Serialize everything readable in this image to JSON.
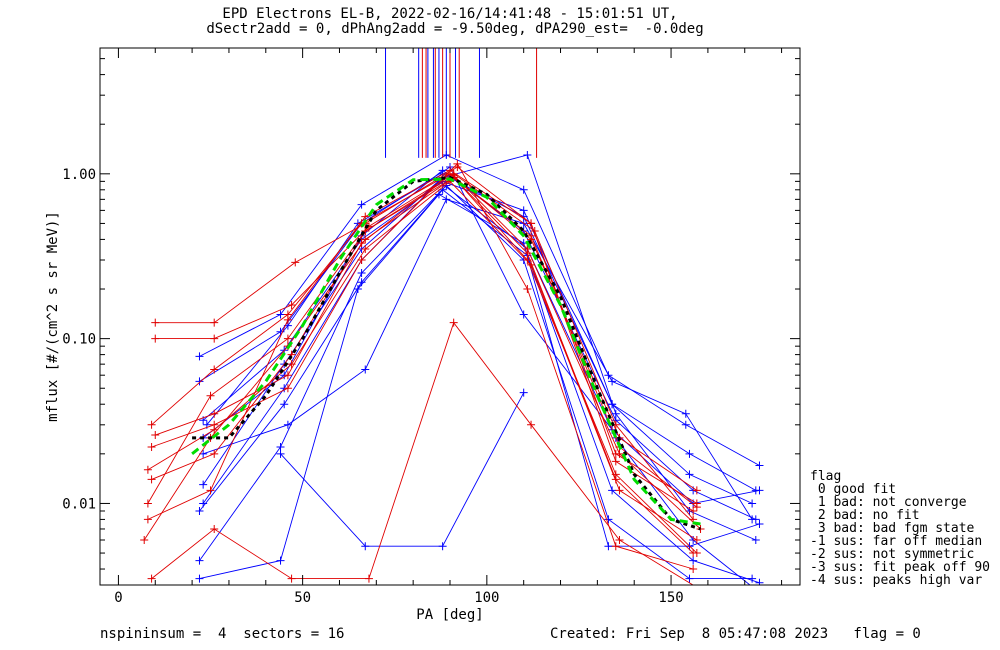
{
  "title_line1": "EPD Electrons EL-B, 2022-02-16/14:41:48 - 15:01:51 UT,",
  "title_line2": "dSectr2add = 0, dPhAng2add = -9.50deg, dPA290_est=  -0.0deg",
  "footer_left": "nspininsum =  4  sectors = 16",
  "footer_right": "Created: Fri Sep  8 05:47:08 2023   flag = 0",
  "legend": {
    "title": "flag",
    "items": [
      " 0 good fit",
      " 1 bad: not converge",
      " 2 bad: no fit",
      " 3 bad: bad fgm state",
      "-1 sus: far off median",
      "-2 sus: not symmetric",
      "-3 sus: fit peak off 90",
      "-4 sus: peaks high var"
    ]
  },
  "colors": {
    "blue": "#0000ff",
    "red": "#e00000",
    "fit_black": "#000000",
    "fit_green": "#00dd00"
  },
  "chart_data": {
    "type": "line",
    "xlabel": "PA [deg]",
    "ylabel": "mflux [#/(cm^2 s sr MeV)]",
    "xlim": [
      -5,
      185
    ],
    "ylim": [
      0.0032,
      5.8
    ],
    "yscale": "log",
    "x_ticks": [
      0,
      50,
      100,
      150
    ],
    "x_ticklabels": [
      "0",
      "50",
      "100",
      "150"
    ],
    "y_ticks": [
      0.01,
      0.1,
      1.0
    ],
    "y_ticklabels": [
      "0.01",
      "0.10",
      "1.00"
    ],
    "grid": false,
    "series": [
      {
        "color": "blue",
        "x": [
          24,
          46,
          65,
          88,
          110,
          134,
          155,
          172
        ],
        "y": [
          0.03,
          0.12,
          0.5,
          1.0,
          0.55,
          0.04,
          0.015,
          0.01
        ]
      },
      {
        "color": "blue",
        "x": [
          23,
          45,
          66,
          87,
          111,
          135,
          156,
          173
        ],
        "y": [
          0.01,
          0.05,
          0.3,
          0.9,
          0.35,
          0.025,
          0.006,
          0.003
        ]
      },
      {
        "color": "blue",
        "x": [
          22,
          44,
          66,
          89,
          110,
          133,
          154,
          174
        ],
        "y": [
          0.078,
          0.14,
          0.65,
          1.3,
          0.8,
          0.06,
          0.03,
          0.017
        ]
      },
      {
        "color": "blue",
        "x": [
          22,
          44,
          66,
          90,
          110,
          134,
          156,
          174
        ],
        "y": [
          0.055,
          0.11,
          0.5,
          1.1,
          0.14,
          0.028,
          0.01,
          0.012
        ]
      },
      {
        "color": "blue",
        "x": [
          23,
          45,
          66,
          88,
          111,
          135,
          155,
          173
        ],
        "y": [
          0.013,
          0.07,
          0.35,
          0.95,
          1.3,
          0.035,
          0.009,
          0.006
        ]
      },
      {
        "color": "blue",
        "x": [
          22,
          45,
          66,
          88,
          111,
          134,
          156,
          174
        ],
        "y": [
          0.009,
          0.04,
          0.22,
          0.8,
          0.32,
          0.012,
          0.0045,
          0.0033
        ]
      },
      {
        "color": "blue",
        "x": [
          22,
          44,
          66,
          89,
          110,
          133,
          155,
          172
        ],
        "y": [
          0.0045,
          0.022,
          0.25,
          0.85,
          0.3,
          0.008,
          0.0035,
          0.0035
        ]
      },
      {
        "color": "blue",
        "x": [
          23,
          45,
          66,
          88,
          110,
          134,
          155,
          173
        ],
        "y": [
          0.032,
          0.085,
          0.4,
          0.9,
          0.6,
          0.04,
          0.02,
          0.012
        ]
      },
      {
        "color": "blue",
        "x": [
          23,
          46,
          67,
          89,
          110,
          134,
          154,
          172
        ],
        "y": [
          0.02,
          0.03,
          0.065,
          0.7,
          0.5,
          0.055,
          0.035,
          0.008
        ]
      },
      {
        "color": "blue",
        "x": [
          22,
          44,
          65,
          87,
          110,
          133,
          155,
          174
        ],
        "y": [
          0.0035,
          0.0045,
          0.2,
          0.75,
          0.38,
          0.0055,
          0.0055,
          0.0075
        ]
      },
      {
        "color": "blue",
        "x": [
          23,
          45,
          66,
          88,
          110,
          135,
          156,
          173
        ],
        "y": [
          0.025,
          0.06,
          0.42,
          1.05,
          0.45,
          0.032,
          0.012,
          0.008
        ]
      },
      {
        "color": "blue",
        "x": [
          44,
          67,
          88,
          110
        ],
        "y": [
          0.02,
          0.0055,
          0.0055,
          0.047
        ]
      },
      {
        "color": "red",
        "x": [
          10,
          26,
          48,
          67,
          92,
          112,
          135,
          157
        ],
        "y": [
          0.125,
          0.125,
          0.29,
          0.5,
          1.1,
          0.5,
          0.02,
          0.01
        ]
      },
      {
        "color": "red",
        "x": [
          10,
          26,
          47,
          68,
          91,
          113,
          135,
          156
        ],
        "y": [
          0.1,
          0.1,
          0.16,
          0.48,
          1.0,
          0.45,
          0.03,
          0.008
        ]
      },
      {
        "color": "red",
        "x": [
          9,
          26,
          46,
          66,
          90,
          112,
          136,
          157
        ],
        "y": [
          0.03,
          0.065,
          0.14,
          0.5,
          1.0,
          0.4,
          0.025,
          0.012
        ]
      },
      {
        "color": "red",
        "x": [
          8,
          25,
          46,
          67,
          91,
          111,
          136,
          158
        ],
        "y": [
          0.01,
          0.045,
          0.1,
          0.45,
          0.98,
          0.35,
          0.02,
          0.007
        ]
      },
      {
        "color": "red",
        "x": [
          7,
          25,
          46,
          67,
          91,
          111,
          135,
          157
        ],
        "y": [
          0.006,
          0.025,
          0.09,
          0.4,
          0.95,
          0.3,
          0.015,
          0.005
        ]
      },
      {
        "color": "red",
        "x": [
          8,
          26,
          47,
          67,
          90,
          112,
          136,
          157
        ],
        "y": [
          0.016,
          0.028,
          0.07,
          0.35,
          0.9,
          0.28,
          0.012,
          0.006
        ]
      },
      {
        "color": "red",
        "x": [
          9,
          26,
          46,
          66,
          92,
          111,
          135,
          156
        ],
        "y": [
          0.022,
          0.03,
          0.05,
          0.3,
          1.15,
          0.2,
          0.0055,
          0.004
        ]
      },
      {
        "color": "red",
        "x": [
          9,
          26,
          47,
          68,
          91,
          112,
          136,
          158
        ],
        "y": [
          0.0035,
          0.007,
          0.0035,
          0.0035,
          0.125,
          0.03,
          0.006,
          0.003
        ]
      },
      {
        "color": "red",
        "x": [
          8,
          25,
          46,
          67,
          90,
          112,
          135,
          156
        ],
        "y": [
          0.008,
          0.012,
          0.13,
          0.55,
          1.05,
          0.5,
          0.018,
          0.009
        ]
      },
      {
        "color": "red",
        "x": [
          9,
          26,
          47,
          67,
          91,
          112,
          136,
          157
        ],
        "y": [
          0.014,
          0.02,
          0.08,
          0.45,
          0.95,
          0.42,
          0.022,
          0.0095
        ]
      },
      {
        "color": "red",
        "x": [
          10,
          26,
          46,
          66,
          90,
          111,
          135,
          156
        ],
        "y": [
          0.026,
          0.035,
          0.06,
          0.38,
          1.0,
          0.33,
          0.014,
          0.005
        ]
      }
    ],
    "fits": [
      {
        "name": "median",
        "color": "fit_black",
        "dash": "4,4",
        "x": [
          20,
          30,
          40,
          50,
          60,
          70,
          80,
          90,
          100,
          110,
          120,
          130,
          140,
          150,
          158
        ],
        "y": [
          0.025,
          0.025,
          0.045,
          0.1,
          0.25,
          0.6,
          0.9,
          0.95,
          0.75,
          0.45,
          0.18,
          0.05,
          0.015,
          0.008,
          0.007
        ]
      },
      {
        "name": "fit",
        "color": "fit_green",
        "dash": "8,5",
        "x": [
          20,
          30,
          40,
          50,
          60,
          70,
          80,
          90,
          100,
          110,
          120,
          130,
          140,
          150,
          158
        ],
        "y": [
          0.02,
          0.03,
          0.055,
          0.12,
          0.3,
          0.65,
          0.92,
          0.93,
          0.72,
          0.42,
          0.16,
          0.045,
          0.014,
          0.008,
          0.0075
        ]
      }
    ],
    "vertical_lines": [
      {
        "color": "blue",
        "x": 72.5,
        "y_bottom": 1.25
      },
      {
        "color": "blue",
        "x": 81.5,
        "y_bottom": 1.25
      },
      {
        "color": "blue",
        "x": 84,
        "y_bottom": 1.25
      },
      {
        "color": "blue",
        "x": 85.5,
        "y_bottom": 1.25
      },
      {
        "color": "blue",
        "x": 87,
        "y_bottom": 1.25
      },
      {
        "color": "blue",
        "x": 89,
        "y_bottom": 1.25
      },
      {
        "color": "blue",
        "x": 91.5,
        "y_bottom": 1.25
      },
      {
        "color": "blue",
        "x": 98,
        "y_bottom": 1.25
      },
      {
        "color": "red",
        "x": 82.5,
        "y_bottom": 1.25
      },
      {
        "color": "red",
        "x": 83.5,
        "y_bottom": 1.25
      },
      {
        "color": "red",
        "x": 86,
        "y_bottom": 1.25
      },
      {
        "color": "red",
        "x": 88,
        "y_bottom": 1.25
      },
      {
        "color": "red",
        "x": 90,
        "y_bottom": 1.25
      },
      {
        "color": "red",
        "x": 92.5,
        "y_bottom": 1.25
      },
      {
        "color": "red",
        "x": 113.5,
        "y_bottom": 1.25
      }
    ]
  }
}
